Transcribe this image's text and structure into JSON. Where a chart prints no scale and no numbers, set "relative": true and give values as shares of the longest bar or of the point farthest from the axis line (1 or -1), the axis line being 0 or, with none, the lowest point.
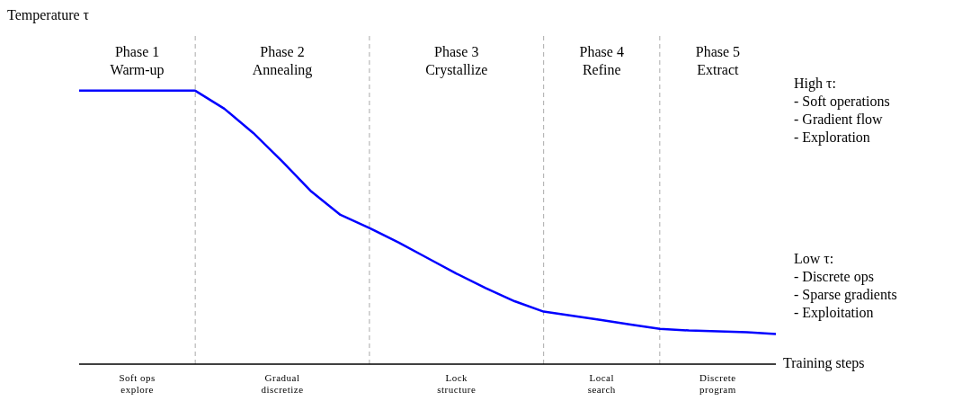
{
  "chart_data": {
    "type": "line",
    "relative": true,
    "grid": "x",
    "ylabel": "Temperature τ",
    "xlabel": "Training steps",
    "categories": [
      null,
      null,
      null,
      null,
      null,
      null,
      null,
      null,
      null,
      null,
      null,
      null,
      null,
      null,
      null,
      null,
      null,
      null,
      null,
      null,
      null,
      null,
      null,
      null,
      null
    ],
    "series": [
      {
        "color": "#0000ff",
        "values": [
          1,
          1,
          1,
          1,
          1,
          0.934,
          0.845,
          0.741,
          0.631,
          0.546,
          0.498,
          0.445,
          0.388,
          0.331,
          0.278,
          0.23,
          0.192,
          0.177,
          0.161,
          0.145,
          0.129,
          0.123,
          0.12,
          0.117,
          0.11
        ]
      }
    ],
    "annotations": [
      "Phase 1\nWarm-up",
      "Phase 2\nAnnealing",
      "Phase 3\nCrystallize",
      "Phase 4\nRefine",
      "Phase 5\nExtract",
      "Soft ops\nexplore",
      "Gradual\ndiscretize",
      "Lock\nstructure",
      "Local\nsearch",
      "Discrete\nprogram",
      "High τ:\n- Soft operations\n- Gradient flow\n- Exploration",
      "Low τ:\n- Discrete ops\n- Sparse gradients\n- Exploitation"
    ]
  }
}
